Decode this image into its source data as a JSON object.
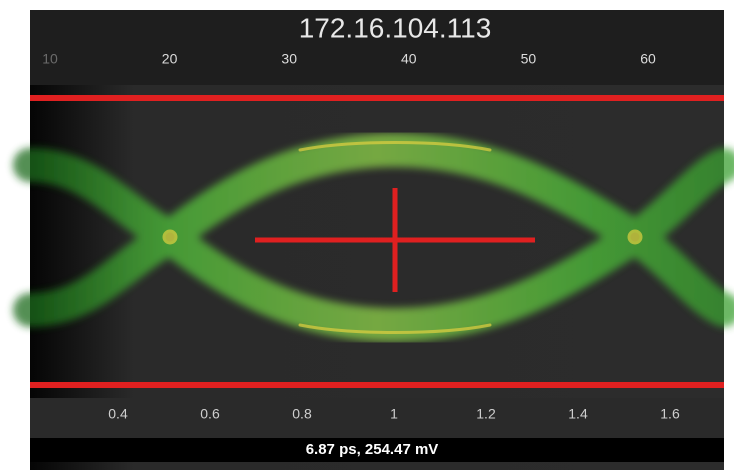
{
  "header": {
    "title": "172.16.104.113"
  },
  "top_axis": {
    "labels": [
      "10",
      "20",
      "30",
      "40",
      "50",
      "60"
    ]
  },
  "bottom_axis": {
    "labels": [
      "0.4",
      "0.6",
      "0.8",
      "1",
      "1.2",
      "1.4",
      "1.6"
    ]
  },
  "status": {
    "readout": "6.87 ps, 254.47 mV"
  }
}
